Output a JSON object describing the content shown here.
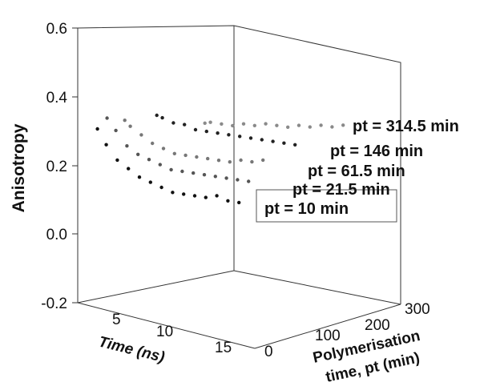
{
  "chart_data": {
    "type": "scatter",
    "title": "",
    "ylabel": "Anisotropy",
    "xlabel": "Time (ns)",
    "zlabel_line1": "Polymerisation",
    "zlabel_line2": "time, pt (min)",
    "ylim": [
      -0.2,
      0.6
    ],
    "y_ticks": [
      "0.6",
      "0.4",
      "0.2",
      "0.0",
      "-0.2"
    ],
    "x_ticks": [
      "5",
      "10",
      "15"
    ],
    "z_ticks": [
      "300",
      "200",
      "100",
      "0"
    ],
    "series": [
      {
        "name": "pt = 10 min",
        "pt": 10,
        "color": "#111111",
        "t": [
          1.2,
          2,
          3,
          4,
          5,
          6,
          7,
          8,
          9,
          10,
          11,
          12,
          13,
          14
        ],
        "y": [
          0.3,
          0.25,
          0.2,
          0.17,
          0.14,
          0.12,
          0.1,
          0.08,
          0.07,
          0.06,
          0.05,
          0.05,
          0.03,
          0.02
        ]
      },
      {
        "name": "pt = 21.5 min",
        "pt": 21.5,
        "color": "#555555",
        "t": [
          1.2,
          2,
          3,
          4,
          5,
          6,
          7,
          8,
          9,
          10,
          11,
          12,
          13,
          14
        ],
        "y": [
          0.33,
          0.29,
          0.24,
          0.21,
          0.19,
          0.17,
          0.15,
          0.14,
          0.13,
          0.12,
          0.11,
          0.1,
          0.09,
          0.08
        ]
      },
      {
        "name": "pt = 61.5 min",
        "pt": 61.5,
        "color": "#777777",
        "t": [
          1.5,
          2,
          3,
          4,
          5,
          6,
          7,
          8,
          9,
          10,
          11,
          12,
          13,
          14
        ],
        "y": [
          0.32,
          0.3,
          0.27,
          0.24,
          0.22,
          0.2,
          0.19,
          0.18,
          0.17,
          0.16,
          0.15,
          0.15,
          0.14,
          0.14
        ]
      },
      {
        "name": "pt = 146 min",
        "pt": 146,
        "color": "#222222",
        "t": [
          1.5,
          2,
          3,
          4,
          5,
          6,
          7,
          8,
          9,
          10,
          11,
          12,
          13,
          14
        ],
        "y": [
          0.33,
          0.32,
          0.3,
          0.29,
          0.27,
          0.26,
          0.25,
          0.24,
          0.23,
          0.22,
          0.21,
          0.2,
          0.19,
          0.18
        ]
      },
      {
        "name": "pt = 314.5 min",
        "pt": 314.5,
        "color": "#8a8a8a",
        "t": [
          1.5,
          2,
          3,
          4,
          5,
          6,
          7,
          8,
          9,
          10,
          11,
          12,
          13,
          14
        ],
        "y": [
          0.3,
          0.3,
          0.29,
          0.28,
          0.28,
          0.27,
          0.27,
          0.26,
          0.25,
          0.25,
          0.24,
          0.24,
          0.23,
          0.23
        ]
      }
    ]
  }
}
